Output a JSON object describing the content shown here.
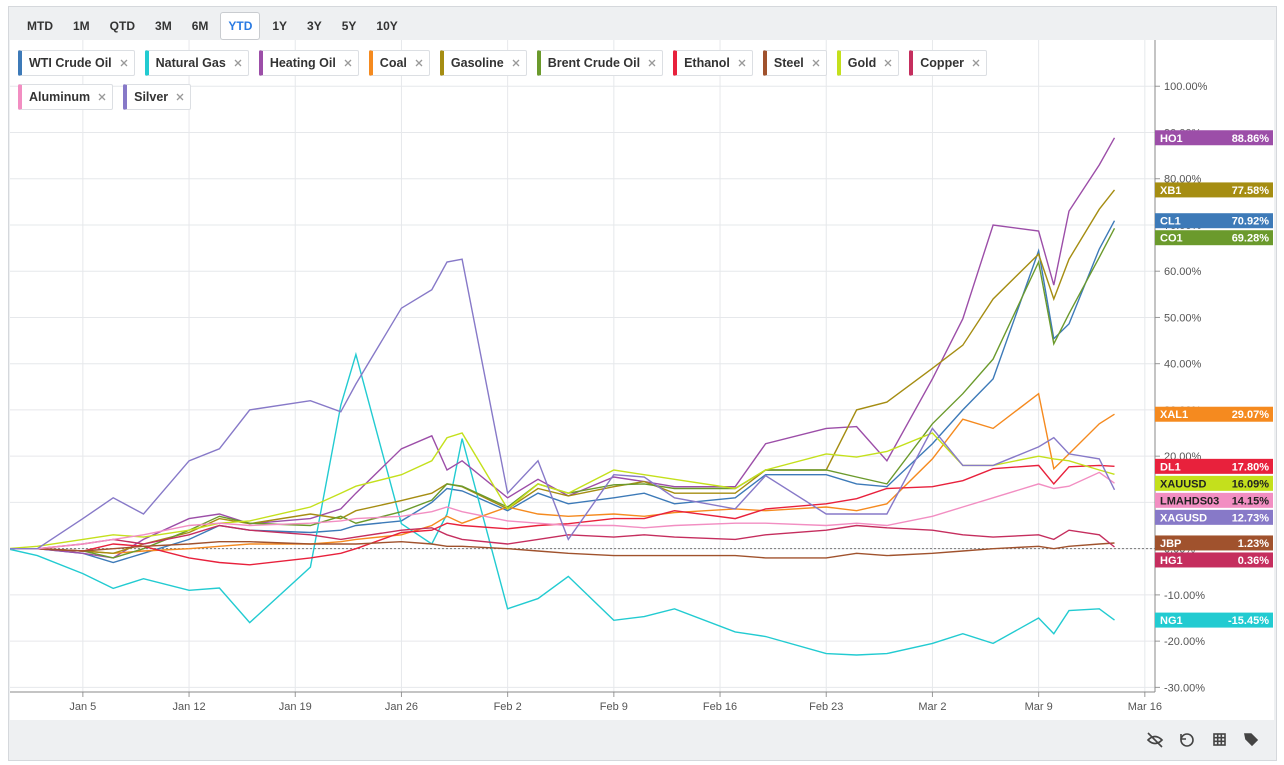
{
  "toolbar": {
    "ranges": [
      "MTD",
      "1M",
      "QTD",
      "3M",
      "6M",
      "YTD",
      "1Y",
      "3Y",
      "5Y",
      "10Y"
    ],
    "selected": "YTD"
  },
  "chart_data": {
    "type": "line",
    "x": [
      "Dec 31",
      "Jan 2",
      "Jan 5",
      "Jan 7",
      "Jan 9",
      "Jan 12",
      "Jan 14",
      "Jan 16",
      "Jan 20",
      "Jan 22",
      "Jan 23",
      "Jan 26",
      "Jan 28",
      "Jan 29",
      "Jan 30",
      "Feb 2",
      "Feb 4",
      "Feb 6",
      "Feb 9",
      "Feb 11",
      "Feb 13",
      "Feb 17",
      "Feb 19",
      "Feb 23",
      "Feb 25",
      "Feb 27",
      "Mar 2",
      "Mar 4",
      "Mar 6",
      "Mar 9",
      "Mar 10",
      "Mar 11",
      "Mar 13",
      "Mar 14"
    ],
    "xlim": [
      "Dec 31",
      "Mar 17"
    ],
    "xticks": [
      "Jan 5",
      "Jan 12",
      "Jan 19",
      "Jan 26",
      "Feb 2",
      "Feb 9",
      "Feb 16",
      "Feb 23",
      "Mar 2",
      "Mar 9",
      "Mar 16"
    ],
    "ylim": [
      -31,
      110
    ],
    "yticks": [
      {
        "value": -30,
        "label": "-30.00%"
      },
      {
        "value": -20,
        "label": "-20.00%"
      },
      {
        "value": -10,
        "label": "-10.00%"
      },
      {
        "value": 0,
        "label": "0.00%"
      },
      {
        "value": 10,
        "label": "10.00%"
      },
      {
        "value": 20,
        "label": "20.00%"
      },
      {
        "value": 30,
        "label": "30.00%"
      },
      {
        "value": 40,
        "label": "40.00%"
      },
      {
        "value": 50,
        "label": "50.00%"
      },
      {
        "value": 60,
        "label": "60.00%"
      },
      {
        "value": 70,
        "label": "70.00%"
      },
      {
        "value": 80,
        "label": "80.00%"
      },
      {
        "value": 90,
        "label": "90.00%"
      },
      {
        "value": 100,
        "label": "100.00%"
      }
    ],
    "grid": true,
    "series": [
      {
        "name": "WTI Crude Oil",
        "ticker": "CL1",
        "color": "#3d7ab8",
        "values": [
          0,
          0,
          -1,
          -3,
          -1,
          2,
          5,
          4,
          3.5,
          4,
          5,
          6,
          10,
          13,
          12.5,
          8.2,
          12,
          9.7,
          11,
          12,
          9.7,
          11,
          16,
          16,
          14,
          13.4,
          22.7,
          30,
          36.7,
          64.4,
          45.4,
          48.6,
          64.8,
          70.92
        ],
        "value_labels": [
          null,
          null,
          null,
          null,
          null,
          null,
          null,
          null,
          null,
          null,
          null,
          null,
          null,
          null,
          null,
          null,
          null,
          null,
          null,
          null,
          null,
          null,
          null,
          null,
          null,
          null,
          null,
          null,
          null,
          null,
          null,
          null,
          null,
          "70.92%"
        ]
      },
      {
        "name": "Natural Gas",
        "ticker": "NG1",
        "color": "#22cbd1",
        "values": [
          0,
          -1.5,
          -5.4,
          -8.6,
          -6.5,
          -9,
          -8.5,
          -16,
          -4,
          31,
          42,
          5.4,
          1,
          7.5,
          23.8,
          -13,
          -10.8,
          -6,
          -15.5,
          -14.7,
          -13,
          -18,
          -19,
          -22.7,
          -23,
          -22.7,
          -20.5,
          -18.4,
          -20.5,
          -15,
          -18.4,
          -13.4,
          -13,
          -15.45
        ],
        "value_labels": [
          null,
          null,
          null,
          null,
          null,
          null,
          null,
          null,
          null,
          null,
          null,
          null,
          null,
          null,
          null,
          null,
          null,
          null,
          null,
          null,
          null,
          null,
          null,
          null,
          null,
          null,
          null,
          null,
          null,
          null,
          null,
          null,
          null,
          "-15.45%"
        ]
      },
      {
        "name": "Heating Oil",
        "ticker": "HO1",
        "color": "#9c4ea8",
        "values": [
          0,
          0,
          -1,
          -2,
          2,
          6.5,
          7.5,
          5.4,
          6.5,
          8.6,
          12,
          21.6,
          24.4,
          17,
          19,
          11,
          15,
          11.4,
          15.5,
          14.5,
          13.4,
          13.4,
          22.7,
          26,
          26.4,
          19,
          36.7,
          49.7,
          70,
          68.7,
          57,
          73,
          83,
          88.86
        ],
        "value_labels": [
          null,
          null,
          null,
          null,
          null,
          null,
          null,
          null,
          null,
          null,
          null,
          null,
          null,
          null,
          null,
          null,
          null,
          null,
          null,
          null,
          null,
          null,
          null,
          null,
          null,
          null,
          null,
          null,
          null,
          null,
          null,
          null,
          null,
          "88.86%"
        ]
      },
      {
        "name": "Coal",
        "ticker": "XAL1",
        "color": "#f58a1f",
        "values": [
          0,
          0,
          -0.5,
          -1,
          -0.5,
          0,
          0.5,
          1,
          1,
          1.5,
          2,
          3,
          5,
          7,
          5.5,
          9,
          7.5,
          7,
          7.5,
          7,
          7.8,
          8.6,
          8.2,
          9,
          8.2,
          9.7,
          19.4,
          28,
          26,
          33.5,
          17.3,
          20.5,
          27,
          29.07
        ],
        "value_labels": [
          null,
          null,
          null,
          null,
          null,
          null,
          null,
          null,
          null,
          null,
          null,
          null,
          null,
          null,
          null,
          null,
          null,
          null,
          null,
          null,
          null,
          null,
          null,
          null,
          null,
          null,
          null,
          null,
          null,
          null,
          null,
          null,
          null,
          "29.07%"
        ]
      },
      {
        "name": "Gasoline",
        "ticker": "XB1",
        "color": "#a58d12",
        "values": [
          0,
          0,
          -0.5,
          -1,
          1,
          3.5,
          6.5,
          5.4,
          7.5,
          6.5,
          8.2,
          10.4,
          12,
          14,
          13.4,
          8.6,
          13,
          11.4,
          13.4,
          14.5,
          12,
          12,
          17,
          17,
          30,
          31.7,
          39,
          44,
          54,
          63.7,
          54,
          62.6,
          73.4,
          77.58
        ],
        "value_labels": [
          null,
          null,
          null,
          null,
          null,
          null,
          null,
          null,
          null,
          null,
          null,
          null,
          null,
          null,
          null,
          null,
          null,
          null,
          null,
          null,
          null,
          null,
          null,
          null,
          null,
          null,
          null,
          null,
          null,
          null,
          null,
          null,
          null,
          "77.58%"
        ]
      },
      {
        "name": "Brent Crude Oil",
        "ticker": "CO1",
        "color": "#6b9a2c",
        "values": [
          0,
          0,
          -0.5,
          -2,
          0,
          4,
          7,
          5.5,
          5,
          7,
          5.5,
          8,
          10.5,
          14,
          13.5,
          9,
          14,
          12,
          13.8,
          14,
          13,
          13,
          17,
          17,
          15.5,
          14,
          27,
          33.5,
          41,
          62,
          44.3,
          50.8,
          63,
          69.28
        ],
        "value_labels": [
          null,
          null,
          null,
          null,
          null,
          null,
          null,
          null,
          null,
          null,
          null,
          null,
          null,
          null,
          null,
          null,
          null,
          null,
          null,
          null,
          null,
          null,
          null,
          null,
          null,
          null,
          null,
          null,
          null,
          null,
          null,
          null,
          null,
          "69.28%"
        ]
      },
      {
        "name": "Ethanol",
        "ticker": "DL1",
        "color": "#e8213c",
        "values": [
          0,
          0,
          -0.5,
          1,
          0.5,
          -2,
          -3,
          -3.5,
          -2,
          -1,
          0,
          3.5,
          4,
          5.5,
          5,
          4.3,
          5,
          5.4,
          6.5,
          6.5,
          8.2,
          6.5,
          8.6,
          9.7,
          10.8,
          13,
          13.4,
          14.7,
          17.3,
          18,
          14,
          17.7,
          18,
          17.8
        ],
        "value_labels": [
          null,
          null,
          null,
          null,
          null,
          null,
          null,
          null,
          null,
          null,
          null,
          null,
          null,
          null,
          null,
          null,
          null,
          null,
          null,
          null,
          null,
          null,
          null,
          null,
          null,
          null,
          null,
          null,
          null,
          null,
          null,
          null,
          null,
          "17.80%"
        ]
      },
      {
        "name": "Steel",
        "ticker": "JBP",
        "color": "#a0522d",
        "values": [
          0,
          0,
          -0.5,
          0,
          0.5,
          1,
          1.5,
          1.5,
          1,
          1,
          1,
          1.5,
          1,
          0.5,
          0.5,
          0,
          -0.5,
          -1,
          -1.5,
          -1.5,
          -1.5,
          -1.5,
          -2,
          -2,
          -1,
          -1.5,
          -1,
          -0.5,
          0,
          0.5,
          0,
          0.5,
          1,
          1.23
        ],
        "value_labels": [
          null,
          null,
          null,
          null,
          null,
          null,
          null,
          null,
          null,
          null,
          null,
          null,
          null,
          null,
          null,
          null,
          null,
          null,
          null,
          null,
          null,
          null,
          null,
          null,
          null,
          null,
          null,
          null,
          null,
          null,
          null,
          null,
          null,
          "1.23%"
        ]
      },
      {
        "name": "Gold",
        "ticker": "XAUUSD",
        "color": "#c4e01c",
        "values": [
          0,
          0.5,
          2,
          3,
          2.5,
          4,
          5.5,
          6,
          9,
          12,
          13.5,
          16,
          19,
          24,
          25,
          8.6,
          14,
          12,
          17,
          16,
          15,
          13,
          17,
          20.5,
          19.8,
          21,
          25,
          18,
          18,
          20,
          19.4,
          19,
          17,
          16.09
        ],
        "value_labels": [
          null,
          null,
          null,
          null,
          null,
          null,
          null,
          null,
          null,
          null,
          null,
          null,
          null,
          null,
          null,
          null,
          null,
          null,
          null,
          null,
          null,
          null,
          null,
          null,
          null,
          null,
          null,
          null,
          null,
          null,
          null,
          null,
          null,
          "16.09%"
        ]
      },
      {
        "name": "Copper",
        "ticker": "HG1",
        "color": "#c52e5e",
        "values": [
          0,
          0,
          1,
          2,
          1,
          3,
          5,
          4,
          3,
          2,
          2.5,
          4,
          4.5,
          3,
          2,
          1,
          2,
          3,
          2.5,
          3,
          2.5,
          2,
          3,
          4,
          5,
          4.5,
          4,
          3,
          2.5,
          3,
          2,
          4,
          3,
          0.36
        ],
        "value_labels": [
          null,
          null,
          null,
          null,
          null,
          null,
          null,
          null,
          null,
          null,
          null,
          null,
          null,
          null,
          null,
          null,
          null,
          null,
          null,
          null,
          null,
          null,
          null,
          null,
          null,
          null,
          null,
          null,
          null,
          null,
          null,
          null,
          null,
          "0.36%"
        ]
      },
      {
        "name": "Aluminum",
        "ticker": "LMAHDS03",
        "color": "#f28ec2",
        "values": [
          0,
          0,
          1,
          2,
          3,
          5,
          5.5,
          5,
          5.5,
          6,
          6.5,
          7,
          8,
          9,
          8,
          6,
          5.5,
          5,
          5,
          4.5,
          5,
          5.5,
          5.5,
          5,
          5.5,
          5,
          7,
          9,
          11,
          14,
          13,
          13.5,
          16.5,
          14.15
        ],
        "value_labels": [
          null,
          null,
          null,
          null,
          null,
          null,
          null,
          null,
          null,
          null,
          null,
          null,
          null,
          null,
          null,
          null,
          null,
          null,
          null,
          null,
          null,
          null,
          null,
          null,
          null,
          null,
          null,
          null,
          null,
          null,
          null,
          null,
          null,
          "14.15%"
        ]
      },
      {
        "name": "Silver",
        "ticker": "XAGUSD",
        "color": "#8779c8",
        "values": [
          0,
          0,
          6.5,
          11,
          7.5,
          19,
          21.6,
          30,
          32,
          29.6,
          35.6,
          52,
          56,
          62,
          62.6,
          12,
          19,
          2,
          16,
          15.5,
          11,
          8.6,
          15.8,
          7.5,
          7.5,
          7.5,
          26,
          18,
          18,
          22,
          24,
          20.5,
          19.4,
          12.73
        ],
        "value_labels": [
          null,
          null,
          null,
          null,
          null,
          null,
          null,
          null,
          null,
          null,
          null,
          null,
          null,
          null,
          null,
          null,
          null,
          null,
          null,
          null,
          null,
          null,
          null,
          null,
          null,
          null,
          null,
          null,
          null,
          null,
          null,
          null,
          null,
          "12.73%"
        ]
      }
    ]
  }
}
